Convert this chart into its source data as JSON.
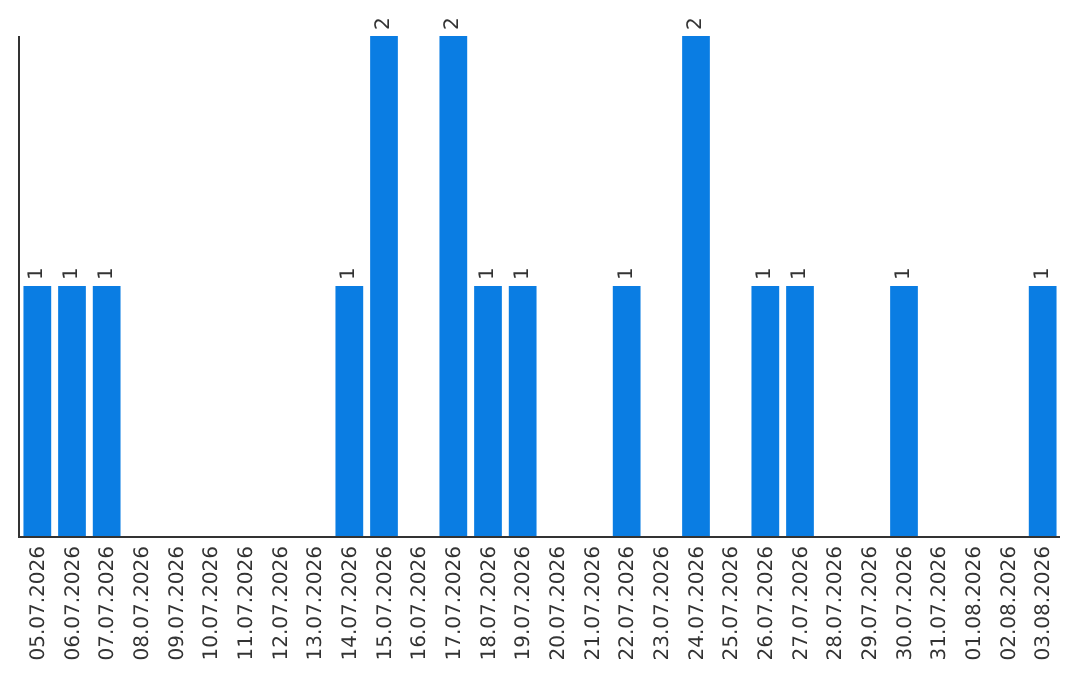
{
  "chart_data": {
    "type": "bar",
    "categories": [
      "05.07.2026",
      "06.07.2026",
      "07.07.2026",
      "08.07.2026",
      "09.07.2026",
      "10.07.2026",
      "11.07.2026",
      "12.07.2026",
      "13.07.2026",
      "14.07.2026",
      "15.07.2026",
      "16.07.2026",
      "17.07.2026",
      "18.07.2026",
      "19.07.2026",
      "20.07.2026",
      "21.07.2026",
      "22.07.2026",
      "23.07.2026",
      "24.07.2026",
      "25.07.2026",
      "26.07.2026",
      "27.07.2026",
      "28.07.2026",
      "29.07.2026",
      "30.07.2026",
      "31.07.2026",
      "01.08.2026",
      "02.08.2026",
      "03.08.2026"
    ],
    "values": [
      1,
      1,
      1,
      0,
      0,
      0,
      0,
      0,
      0,
      1,
      2,
      0,
      2,
      1,
      1,
      0,
      0,
      1,
      0,
      2,
      0,
      1,
      1,
      0,
      0,
      1,
      0,
      0,
      0,
      1
    ],
    "value_labels": [
      "1",
      "1",
      "1",
      null,
      null,
      null,
      null,
      null,
      null,
      "1",
      "2",
      null,
      "2",
      "1",
      "1",
      null,
      null,
      "1",
      null,
      "2",
      null,
      "1",
      "1",
      null,
      null,
      "1",
      null,
      null,
      null,
      "1"
    ],
    "color": "#0a7de3",
    "ylim": [
      0,
      2
    ],
    "tick_labels": "x"
  }
}
